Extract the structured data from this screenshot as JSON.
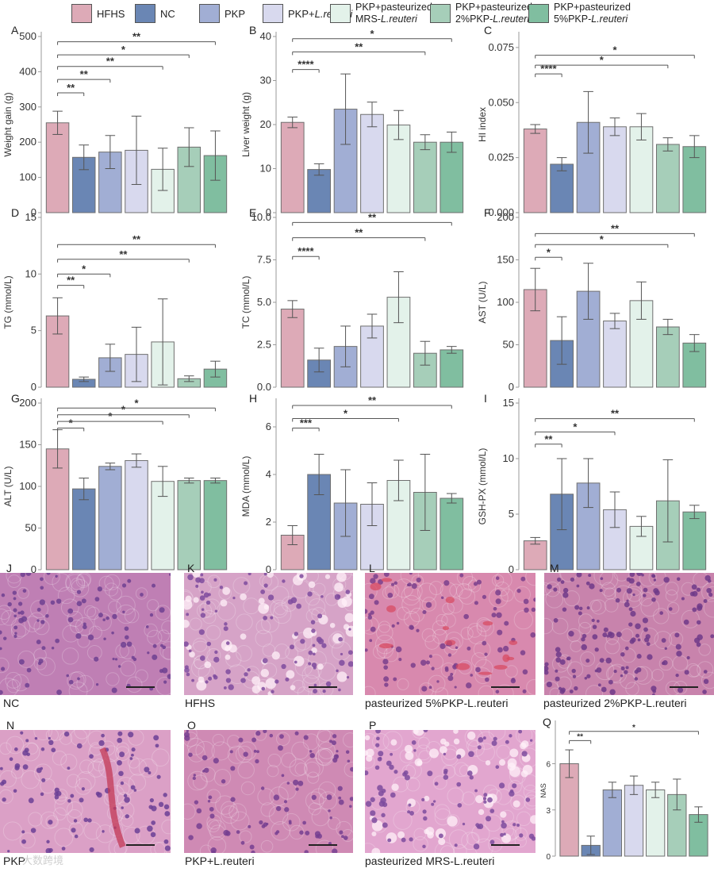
{
  "legend": [
    {
      "key": "HFHS",
      "lines": [
        "HFHS"
      ],
      "color": "#ddaab7"
    },
    {
      "key": "NC",
      "lines": [
        "NC"
      ],
      "color": "#6a86b4"
    },
    {
      "key": "PKP",
      "lines": [
        "PKP"
      ],
      "color": "#a1aed4"
    },
    {
      "key": "PKP+L.reuteri",
      "lines": [
        "PKP+L.reuteri"
      ],
      "color": "#d8d9ee"
    },
    {
      "key": "PKP+pasteurized MRS-L.reuteri",
      "lines": [
        "PKP+pasteurized",
        "MRS-L.reuteri"
      ],
      "color": "#e3f2ea"
    },
    {
      "key": "PKP+pasteurized 2%PKP-L.reuteri",
      "lines": [
        "PKP+pasteurized",
        "2%PKP-L.reuteri"
      ],
      "color": "#a6ceb9"
    },
    {
      "key": "PKP+pasteurized 5%PKP-L.reuteri",
      "lines": [
        "PKP+pasteurized",
        "5%PKP-L.reuteri"
      ],
      "color": "#80bea0"
    }
  ],
  "chart_data": [
    {
      "panel": "A",
      "type": "bar",
      "ylabel": "Weight gain (g)",
      "ylim": [
        0,
        500
      ],
      "yticks": [
        "0",
        "100",
        "200",
        "300",
        "400",
        "500"
      ],
      "ytick_values": [
        0,
        100,
        200,
        300,
        400,
        500
      ],
      "categories": [
        "HFHS",
        "NC",
        "PKP",
        "PKP+L.reuteri",
        "PKP+pasteurized MRS-L.reuteri",
        "PKP+pasteurized 2%PKP-L.reuteri",
        "PKP+pasteurized 5%PKP-L.reuteri"
      ],
      "values": [
        255,
        157,
        172,
        177,
        123,
        186,
        162
      ],
      "errors": [
        33,
        35,
        47,
        97,
        60,
        55,
        70
      ],
      "significance": [
        {
          "from": 0,
          "to": 1,
          "y": 340,
          "label": "**"
        },
        {
          "from": 0,
          "to": 2,
          "y": 378,
          "label": "**"
        },
        {
          "from": 0,
          "to": 4,
          "y": 415,
          "label": "**"
        },
        {
          "from": 0,
          "to": 5,
          "y": 448,
          "label": "*"
        },
        {
          "from": 0,
          "to": 6,
          "y": 485,
          "label": "**"
        }
      ]
    },
    {
      "panel": "B",
      "type": "bar",
      "ylabel": "Liver weight (g)",
      "ylim": [
        0,
        40
      ],
      "yticks": [
        "0",
        "10",
        "20",
        "30",
        "40"
      ],
      "ytick_values": [
        0,
        10,
        20,
        30,
        40
      ],
      "categories": [
        "HFHS",
        "NC",
        "PKP",
        "PKP+L.reuteri",
        "PKP+pasteurized MRS-L.reuteri",
        "PKP+pasteurized 2%PKP-L.reuteri",
        "PKP+pasteurized 5%PKP-L.reuteri"
      ],
      "values": [
        20.5,
        9.8,
        23.5,
        22.3,
        19.9,
        16.0,
        16.0
      ],
      "errors": [
        1.2,
        1.3,
        8.0,
        2.8,
        3.3,
        1.7,
        2.3
      ],
      "significance": [
        {
          "from": 0,
          "to": 1,
          "y": 32.5,
          "label": "****"
        },
        {
          "from": 0,
          "to": 5,
          "y": 36.5,
          "label": "**"
        },
        {
          "from": 0,
          "to": 6,
          "y": 39.5,
          "label": "*"
        }
      ]
    },
    {
      "panel": "C",
      "type": "bar",
      "ylabel": "HI index",
      "ylim": [
        0,
        0.08
      ],
      "yticks": [
        "0.000",
        "0.025",
        "0.050",
        "0.075"
      ],
      "ytick_values": [
        0,
        0.025,
        0.05,
        0.075
      ],
      "categories": [
        "HFHS",
        "NC",
        "PKP",
        "PKP+L.reuteri",
        "PKP+pasteurized MRS-L.reuteri",
        "PKP+pasteurized 2%PKP-L.reuteri",
        "PKP+pasteurized 5%PKP-L.reuteri"
      ],
      "values": [
        0.038,
        0.022,
        0.041,
        0.039,
        0.039,
        0.031,
        0.03
      ],
      "errors": [
        0.002,
        0.003,
        0.014,
        0.004,
        0.006,
        0.003,
        0.005
      ],
      "significance": [
        {
          "from": 0,
          "to": 1,
          "y": 0.063,
          "label": "****"
        },
        {
          "from": 0,
          "to": 5,
          "y": 0.067,
          "label": "*"
        },
        {
          "from": 0,
          "to": 6,
          "y": 0.0715,
          "label": "*"
        }
      ]
    },
    {
      "panel": "D",
      "type": "bar",
      "ylabel": "TG (mmol/L)",
      "ylim": [
        0,
        15
      ],
      "yticks": [
        "0",
        "5",
        "10",
        "15"
      ],
      "ytick_values": [
        0,
        5,
        10,
        15
      ],
      "categories": [
        "HFHS",
        "NC",
        "PKP",
        "PKP+L.reuteri",
        "PKP+pasteurized MRS-L.reuteri",
        "PKP+pasteurized 2%PKP-L.reuteri",
        "PKP+pasteurized 5%PKP-L.reuteri"
      ],
      "values": [
        6.3,
        0.7,
        2.6,
        2.9,
        4.0,
        0.75,
        1.6
      ],
      "errors": [
        1.6,
        0.2,
        1.2,
        2.4,
        3.8,
        0.25,
        0.7
      ],
      "significance": [
        {
          "from": 0,
          "to": 1,
          "y": 9.0,
          "label": "**"
        },
        {
          "from": 0,
          "to": 2,
          "y": 10.0,
          "label": "*"
        },
        {
          "from": 0,
          "to": 5,
          "y": 11.3,
          "label": "**"
        },
        {
          "from": 0,
          "to": 6,
          "y": 12.6,
          "label": "**"
        }
      ]
    },
    {
      "panel": "E",
      "type": "bar",
      "ylabel": "TC (mmol/L)",
      "ylim": [
        0,
        10
      ],
      "yticks": [
        "0.0",
        "2.5",
        "5.0",
        "7.5",
        "10.0"
      ],
      "ytick_values": [
        0,
        2.5,
        5,
        7.5,
        10
      ],
      "categories": [
        "HFHS",
        "NC",
        "PKP",
        "PKP+L.reuteri",
        "PKP+pasteurized MRS-L.reuteri",
        "PKP+pasteurized 2%PKP-L.reuteri",
        "PKP+pasteurized 5%PKP-L.reuteri"
      ],
      "values": [
        4.6,
        1.6,
        2.4,
        3.6,
        5.3,
        2.0,
        2.2
      ],
      "errors": [
        0.5,
        0.7,
        1.2,
        0.7,
        1.5,
        0.7,
        0.2
      ],
      "significance": [
        {
          "from": 0,
          "to": 1,
          "y": 7.7,
          "label": "****"
        },
        {
          "from": 0,
          "to": 5,
          "y": 8.8,
          "label": "**"
        },
        {
          "from": 0,
          "to": 6,
          "y": 9.7,
          "label": "**"
        }
      ]
    },
    {
      "panel": "F",
      "type": "bar",
      "ylabel": "AST (U/L)",
      "ylim": [
        0,
        200
      ],
      "yticks": [
        "0",
        "50",
        "100",
        "150",
        "200"
      ],
      "ytick_values": [
        0,
        50,
        100,
        150,
        200
      ],
      "categories": [
        "HFHS",
        "NC",
        "PKP",
        "PKP+L.reuteri",
        "PKP+pasteurized MRS-L.reuteri",
        "PKP+pasteurized 2%PKP-L.reuteri",
        "PKP+pasteurized 5%PKP-L.reuteri"
      ],
      "values": [
        115,
        55,
        113,
        78,
        102,
        71,
        52
      ],
      "errors": [
        25,
        28,
        33,
        9,
        22,
        9,
        10
      ],
      "significance": [
        {
          "from": 0,
          "to": 1,
          "y": 153,
          "label": "*"
        },
        {
          "from": 0,
          "to": 5,
          "y": 168,
          "label": "*"
        },
        {
          "from": 0,
          "to": 6,
          "y": 181,
          "label": "**"
        }
      ]
    },
    {
      "panel": "G",
      "type": "bar",
      "ylabel": "ALT (U/L)",
      "ylim": [
        0,
        200
      ],
      "yticks": [
        "0",
        "50",
        "100",
        "150",
        "200"
      ],
      "ytick_values": [
        0,
        50,
        100,
        150,
        200
      ],
      "categories": [
        "HFHS",
        "NC",
        "PKP",
        "PKP+L.reuteri",
        "PKP+pasteurized MRS-L.reuteri",
        "PKP+pasteurized 2%PKP-L.reuteri",
        "PKP+pasteurized 5%PKP-L.reuteri"
      ],
      "values": [
        145,
        97,
        124,
        131,
        106,
        107,
        107
      ],
      "errors": [
        23,
        13,
        4,
        8,
        18,
        3,
        3
      ],
      "significance": [
        {
          "from": 0,
          "to": 1,
          "y": 170,
          "label": "*"
        },
        {
          "from": 0,
          "to": 4,
          "y": 178,
          "label": "*"
        },
        {
          "from": 0,
          "to": 5,
          "y": 186,
          "label": "*"
        },
        {
          "from": 0,
          "to": 6,
          "y": 194,
          "label": "*"
        }
      ]
    },
    {
      "panel": "H",
      "type": "bar",
      "ylabel": "MDA (mmol/L)",
      "ylim": [
        0,
        7
      ],
      "yticks": [
        "0",
        "2",
        "4",
        "6"
      ],
      "ytick_values": [
        0,
        2,
        4,
        6
      ],
      "categories": [
        "HFHS",
        "NC",
        "PKP",
        "PKP+L.reuteri",
        "PKP+pasteurized MRS-L.reuteri",
        "PKP+pasteurized 2%PKP-L.reuteri",
        "PKP+pasteurized 5%PKP-L.reuteri"
      ],
      "values": [
        1.45,
        4.0,
        2.8,
        2.75,
        3.75,
        3.25,
        3.0
      ],
      "errors": [
        0.4,
        0.85,
        1.4,
        0.9,
        0.85,
        1.6,
        0.2
      ],
      "significance": [
        {
          "from": 0,
          "to": 1,
          "y": 5.95,
          "label": "***"
        },
        {
          "from": 0,
          "to": 4,
          "y": 6.35,
          "label": "*"
        },
        {
          "from": 0,
          "to": 6,
          "y": 6.9,
          "label": "**"
        }
      ]
    },
    {
      "panel": "I",
      "type": "bar",
      "ylabel": "GSH-PX (mmol/L)",
      "ylim": [
        0,
        15
      ],
      "yticks": [
        "0",
        "5",
        "10",
        "15"
      ],
      "ytick_values": [
        0,
        5,
        10,
        15
      ],
      "categories": [
        "HFHS",
        "NC",
        "PKP",
        "PKP+L.reuteri",
        "PKP+pasteurized MRS-L.reuteri",
        "PKP+pasteurized 2%PKP-L.reuteri",
        "PKP+pasteurized 5%PKP-L.reuteri"
      ],
      "values": [
        2.6,
        6.8,
        7.8,
        5.4,
        3.9,
        6.2,
        5.2
      ],
      "errors": [
        0.3,
        3.2,
        2.2,
        1.6,
        0.9,
        3.7,
        0.6
      ],
      "significance": [
        {
          "from": 0,
          "to": 1,
          "y": 11.3,
          "label": "**"
        },
        {
          "from": 0,
          "to": 3,
          "y": 12.4,
          "label": "*"
        },
        {
          "from": 0,
          "to": 6,
          "y": 13.6,
          "label": "**"
        }
      ]
    },
    {
      "panel": "Q",
      "type": "bar",
      "ylabel": "NAS",
      "ylim": [
        0,
        8.5
      ],
      "yticks": [
        "0",
        "3",
        "6"
      ],
      "ytick_values": [
        0,
        3,
        6
      ],
      "categories": [
        "HFHS",
        "NC",
        "PKP",
        "PKP+L.reuteri",
        "PKP+pasteurized MRS-L.reuteri",
        "PKP+pasteurized 2%PKP-L.reuteri",
        "PKP+pasteurized 5%PKP-L.reuteri"
      ],
      "values": [
        6.0,
        0.7,
        4.3,
        4.6,
        4.3,
        4.0,
        2.7
      ],
      "errors": [
        0.9,
        0.6,
        0.5,
        0.6,
        0.5,
        1.0,
        0.5
      ],
      "significance": [
        {
          "from": 0,
          "to": 1,
          "y": 7.5,
          "label": "**"
        },
        {
          "from": 0,
          "to": 6,
          "y": 8.1,
          "label": "*"
        }
      ]
    }
  ],
  "histology": [
    {
      "panel": "J",
      "caption": "NC",
      "tone": "#bf7fb4",
      "nucleus": "#6d3f91",
      "feature": "none"
    },
    {
      "panel": "K",
      "caption": "HFHS",
      "tone": "#d6a3c7",
      "nucleus": "#7e4b9d",
      "feature": "vacuoles"
    },
    {
      "panel": "L",
      "caption": "pasteurized 5%PKP-L.reuteri",
      "tone": "#d889ae",
      "nucleus": "#7a3f8c",
      "feature": "redcells"
    },
    {
      "panel": "M",
      "caption": "pasteurized 2%PKP-L.reuteri",
      "tone": "#c883ac",
      "nucleus": "#6e3a88",
      "feature": "dense"
    },
    {
      "panel": "N",
      "caption": "PKP",
      "tone": "#dba0c6",
      "nucleus": "#6b3f95",
      "feature": "vessel"
    },
    {
      "panel": "O",
      "caption": "PKP+L.reuteri",
      "tone": "#cf8ab4",
      "nucleus": "#753e90",
      "feature": "none"
    },
    {
      "panel": "P",
      "caption": "pasteurized MRS-L.reuteri",
      "tone": "#e2a6cf",
      "nucleus": "#7d4b9e",
      "feature": "vacuoles"
    }
  ],
  "watermark": "大数跨境"
}
